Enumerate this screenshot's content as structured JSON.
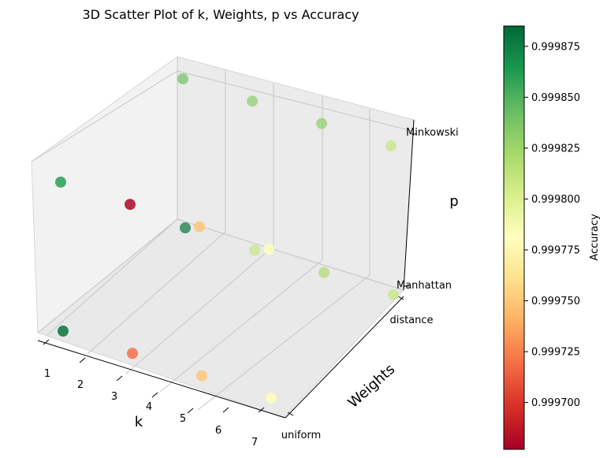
{
  "chart_data": {
    "type": "scatter",
    "projection": "3d",
    "title": "3D Scatter Plot of k, Weights, p vs Accuracy",
    "xlabel": "k",
    "ylabel": "Weights",
    "zlabel": "p",
    "x_ticks": [
      "1",
      "2",
      "3",
      "4",
      "5",
      "6",
      "7"
    ],
    "y_ticks": [
      "uniform",
      "distance"
    ],
    "z_ticks": [
      "Manhattan",
      "Minkowski"
    ],
    "xlim": [
      1,
      7
    ],
    "grid": true,
    "colormap": "RdYlGn",
    "colorbar": {
      "label": "Accuracy",
      "min": 0.999677,
      "max": 0.999885,
      "ticks": [
        "0.999700",
        "0.999725",
        "0.999750",
        "0.999775",
        "0.999800",
        "0.999825",
        "0.999850",
        "0.999875"
      ]
    },
    "points": [
      {
        "k": 1,
        "weights": "uniform",
        "p": "Manhattan",
        "accuracy": 0.99988
      },
      {
        "k": 3,
        "weights": "uniform",
        "p": "Manhattan",
        "accuracy": 0.99972
      },
      {
        "k": 5,
        "weights": "uniform",
        "p": "Manhattan",
        "accuracy": 0.99975
      },
      {
        "k": 7,
        "weights": "uniform",
        "p": "Manhattan",
        "accuracy": 0.99978
      },
      {
        "k": 1,
        "weights": "distance",
        "p": "Manhattan",
        "accuracy": 0.99988
      },
      {
        "k": 3,
        "weights": "distance",
        "p": "Manhattan",
        "accuracy": 0.99981
      },
      {
        "k": 5,
        "weights": "distance",
        "p": "Manhattan",
        "accuracy": 0.99982
      },
      {
        "k": 7,
        "weights": "distance",
        "p": "Manhattan",
        "accuracy": 0.99981
      },
      {
        "k": 1,
        "weights": "uniform",
        "p": "Minkowski",
        "accuracy": 0.99986
      },
      {
        "k": 3,
        "weights": "uniform",
        "p": "Minkowski",
        "accuracy": 0.99968
      },
      {
        "k": 5,
        "weights": "uniform",
        "p": "Minkowski",
        "accuracy": 0.99975
      },
      {
        "k": 7,
        "weights": "uniform",
        "p": "Minkowski",
        "accuracy": 0.99978
      },
      {
        "k": 1,
        "weights": "distance",
        "p": "Minkowski",
        "accuracy": 0.99984
      },
      {
        "k": 3,
        "weights": "distance",
        "p": "Minkowski",
        "accuracy": 0.99983
      },
      {
        "k": 5,
        "weights": "distance",
        "p": "Minkowski",
        "accuracy": 0.99983
      },
      {
        "k": 7,
        "weights": "distance",
        "p": "Minkowski",
        "accuracy": 0.99981
      }
    ]
  }
}
